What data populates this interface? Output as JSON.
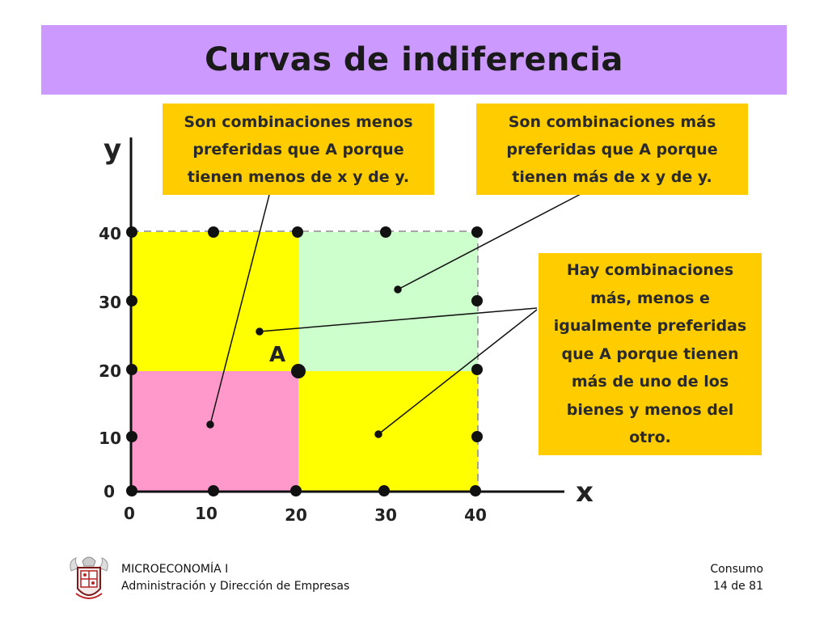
{
  "slide": {
    "title": "Curvas de indiferencia"
  },
  "callouts": {
    "less": {
      "lines": [
        "Son combinaciones menos",
        "preferidas que A porque",
        "tienen menos de x y de y."
      ]
    },
    "more": {
      "lines": [
        "Son combinaciones más",
        "preferidas que A porque",
        "tienen más de x y de y."
      ]
    },
    "mixed": {
      "lines": [
        "Hay combinaciones",
        "más, menos e",
        "igualmente preferidas",
        "que A porque tienen",
        "más de uno de los",
        "bienes y menos del",
        "otro."
      ]
    }
  },
  "diagram": {
    "x_axis_label": "x",
    "y_axis_label": "y",
    "x_ticks": [
      "0",
      "10",
      "20",
      "30",
      "40"
    ],
    "y_ticks": [
      "0",
      "10",
      "20",
      "30",
      "40"
    ],
    "point_label": "A",
    "point": {
      "x": 20,
      "y": 20
    },
    "colors": {
      "less_preferred": "#ff99cc",
      "more_preferred": "#ccffcc",
      "mixed": "#ffff00"
    }
  },
  "footer": {
    "course": "MICROECONOMÍA I",
    "program": "Administración y Dirección de Empresas",
    "topic": "Consumo",
    "page": "14 de 81"
  }
}
